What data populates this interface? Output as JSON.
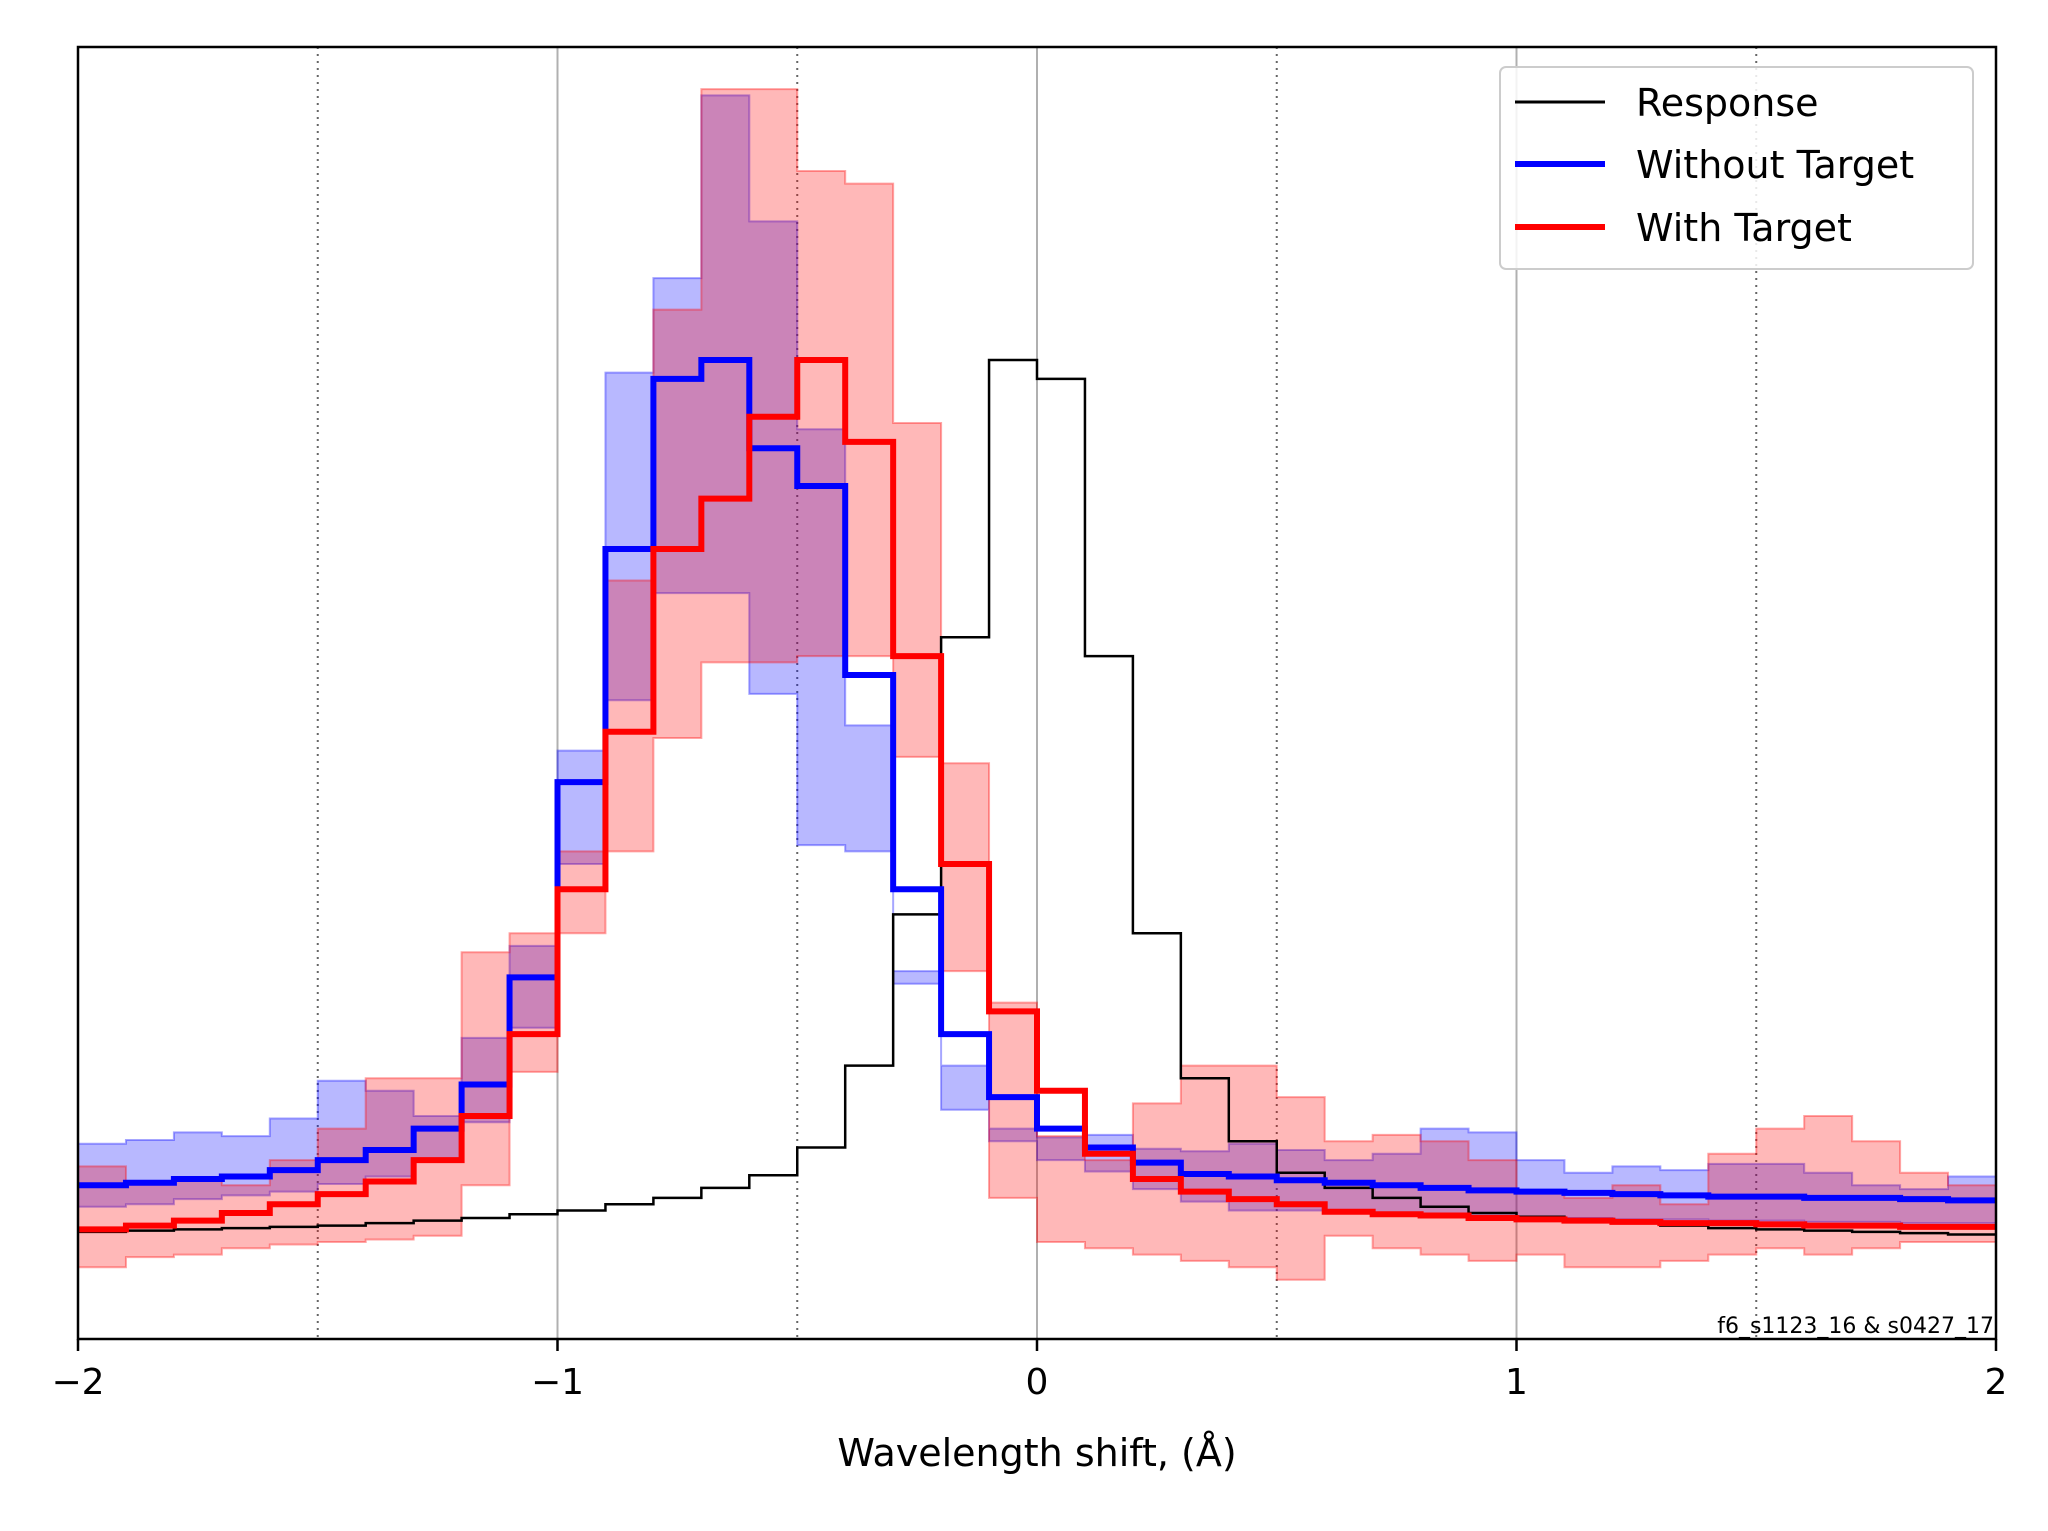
{
  "chart_data": {
    "type": "line",
    "subtype": "step-histogram-with-bands",
    "xlabel": "Wavelength shift, (Å)",
    "ylabel": "",
    "xlim": [
      -2,
      2
    ],
    "ylim": [
      0,
      1.0
    ],
    "x_ticks": [
      -2,
      -1,
      0,
      1,
      2
    ],
    "x_tick_labels": [
      "−2",
      "−1",
      "0",
      "1",
      "2"
    ],
    "grid": {
      "solid_x": [
        -1,
        0,
        1
      ],
      "dotted_x": [
        -1.5,
        -0.5,
        0.5,
        1.5
      ]
    },
    "legend_position": "top-right",
    "annotation": "f6_s1123_16 & s0427_17",
    "bin_edges": [
      -2.0,
      -1.9,
      -1.8,
      -1.7,
      -1.6,
      -1.5,
      -1.4,
      -1.3,
      -1.2,
      -1.1,
      -1.0,
      -0.9,
      -0.8,
      -0.7,
      -0.6,
      -0.5,
      -0.4,
      -0.3,
      -0.2,
      -0.1,
      0.0,
      0.1,
      0.2,
      0.3,
      0.4,
      0.5,
      0.6,
      0.7,
      0.8,
      0.9,
      1.0,
      1.1,
      1.2,
      1.3,
      1.4,
      1.5,
      1.6,
      1.7,
      1.8,
      1.9,
      2.0
    ],
    "series": [
      {
        "name": "Response",
        "color": "#000000",
        "values": [
          0.058,
          0.059,
          0.06,
          0.061,
          0.062,
          0.063,
          0.065,
          0.067,
          0.069,
          0.072,
          0.075,
          0.08,
          0.085,
          0.093,
          0.103,
          0.125,
          0.19,
          0.31,
          0.53,
          0.75,
          0.735,
          0.515,
          0.295,
          0.18,
          0.13,
          0.105,
          0.093,
          0.085,
          0.078,
          0.073,
          0.07,
          0.067,
          0.065,
          0.063,
          0.061,
          0.06,
          0.059,
          0.058,
          0.057,
          0.056
        ]
      },
      {
        "name": "Without Target",
        "color": "#0000ff",
        "values": [
          0.095,
          0.097,
          0.1,
          0.102,
          0.107,
          0.115,
          0.123,
          0.14,
          0.175,
          0.26,
          0.415,
          0.6,
          0.735,
          0.75,
          0.68,
          0.65,
          0.5,
          0.33,
          0.215,
          0.165,
          0.14,
          0.125,
          0.113,
          0.104,
          0.102,
          0.099,
          0.097,
          0.095,
          0.093,
          0.091,
          0.09,
          0.089,
          0.088,
          0.087,
          0.086,
          0.086,
          0.085,
          0.085,
          0.084,
          0.083
        ],
        "band_lower": [
          0.078,
          0.08,
          0.084,
          0.087,
          0.09,
          0.096,
          0.102,
          0.114,
          0.145,
          0.22,
          0.35,
          0.48,
          0.565,
          0.565,
          0.485,
          0.365,
          0.36,
          0.255,
          0.19,
          0.13,
          0.115,
          0.106,
          0.092,
          0.082,
          0.075,
          0.075,
          0.075,
          0.073,
          0.072,
          0.07,
          0.069,
          0.069,
          0.068,
          0.068,
          0.067,
          0.067,
          0.066,
          0.066,
          0.065,
          0.065
        ],
        "band_upper": [
          0.128,
          0.131,
          0.137,
          0.134,
          0.148,
          0.178,
          0.17,
          0.15,
          0.212,
          0.285,
          0.44,
          0.74,
          0.815,
          0.96,
          0.86,
          0.695,
          0.46,
          0.265,
          0.155,
          0.14,
          0.133,
          0.135,
          0.124,
          0.122,
          0.128,
          0.123,
          0.115,
          0.12,
          0.14,
          0.137,
          0.115,
          0.105,
          0.11,
          0.107,
          0.112,
          0.112,
          0.105,
          0.095,
          0.092,
          0.102
        ]
      },
      {
        "name": "With Target",
        "color": "#ff0000",
        "values": [
          0.06,
          0.063,
          0.067,
          0.073,
          0.08,
          0.088,
          0.098,
          0.115,
          0.15,
          0.215,
          0.33,
          0.455,
          0.6,
          0.64,
          0.705,
          0.75,
          0.685,
          0.515,
          0.35,
          0.233,
          0.17,
          0.12,
          0.1,
          0.09,
          0.084,
          0.08,
          0.074,
          0.072,
          0.071,
          0.069,
          0.068,
          0.067,
          0.066,
          0.065,
          0.065,
          0.064,
          0.063,
          0.063,
          0.062,
          0.062
        ],
        "band_lower": [
          0.03,
          0.038,
          0.04,
          0.045,
          0.048,
          0.05,
          0.052,
          0.055,
          0.095,
          0.185,
          0.295,
          0.36,
          0.45,
          0.51,
          0.51,
          0.515,
          0.515,
          0.435,
          0.265,
          0.085,
          0.05,
          0.045,
          0.04,
          0.035,
          0.03,
          0.02,
          0.055,
          0.045,
          0.04,
          0.035,
          0.04,
          0.03,
          0.03,
          0.035,
          0.04,
          0.045,
          0.04,
          0.045,
          0.05,
          0.05
        ],
        "band_upper": [
          0.11,
          0.098,
          0.101,
          0.095,
          0.115,
          0.14,
          0.18,
          0.18,
          0.28,
          0.295,
          0.36,
          0.575,
          0.79,
          0.965,
          0.965,
          0.9,
          0.89,
          0.7,
          0.43,
          0.24,
          0.134,
          0.115,
          0.16,
          0.19,
          0.19,
          0.165,
          0.13,
          0.135,
          0.13,
          0.115,
          0.09,
          0.085,
          0.095,
          0.08,
          0.12,
          0.14,
          0.15,
          0.13,
          0.105,
          0.095
        ]
      }
    ]
  }
}
